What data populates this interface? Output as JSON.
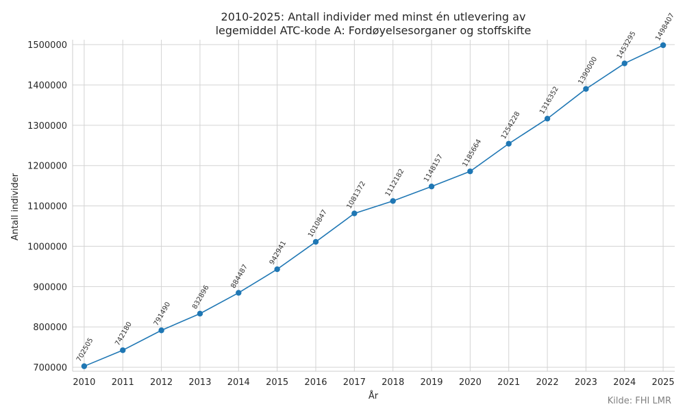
{
  "chart_data": {
    "type": "line",
    "title_line1": "2010-2025: Antall individer med minst én utlevering av",
    "title_line2": "legemiddel ATC-kode A: Fordøyelsesorganer og stoffskifte",
    "xlabel": "År",
    "ylabel": "Antall individer",
    "x": [
      2010,
      2011,
      2012,
      2013,
      2014,
      2015,
      2016,
      2017,
      2018,
      2019,
      2020,
      2021,
      2022,
      2023,
      2024,
      2025
    ],
    "values": [
      702505,
      742180,
      791490,
      832896,
      884487,
      942941,
      1010847,
      1081372,
      1112182,
      1148157,
      1185664,
      1254228,
      1316352,
      1390000,
      1453295,
      1498407
    ],
    "yticks": [
      700000,
      800000,
      900000,
      1000000,
      1100000,
      1200000,
      1300000,
      1400000,
      1500000
    ],
    "ylim": [
      690000,
      1512000
    ],
    "grid": true,
    "line_color": "#1f77b4"
  },
  "source": "Kilde: FHI LMR"
}
